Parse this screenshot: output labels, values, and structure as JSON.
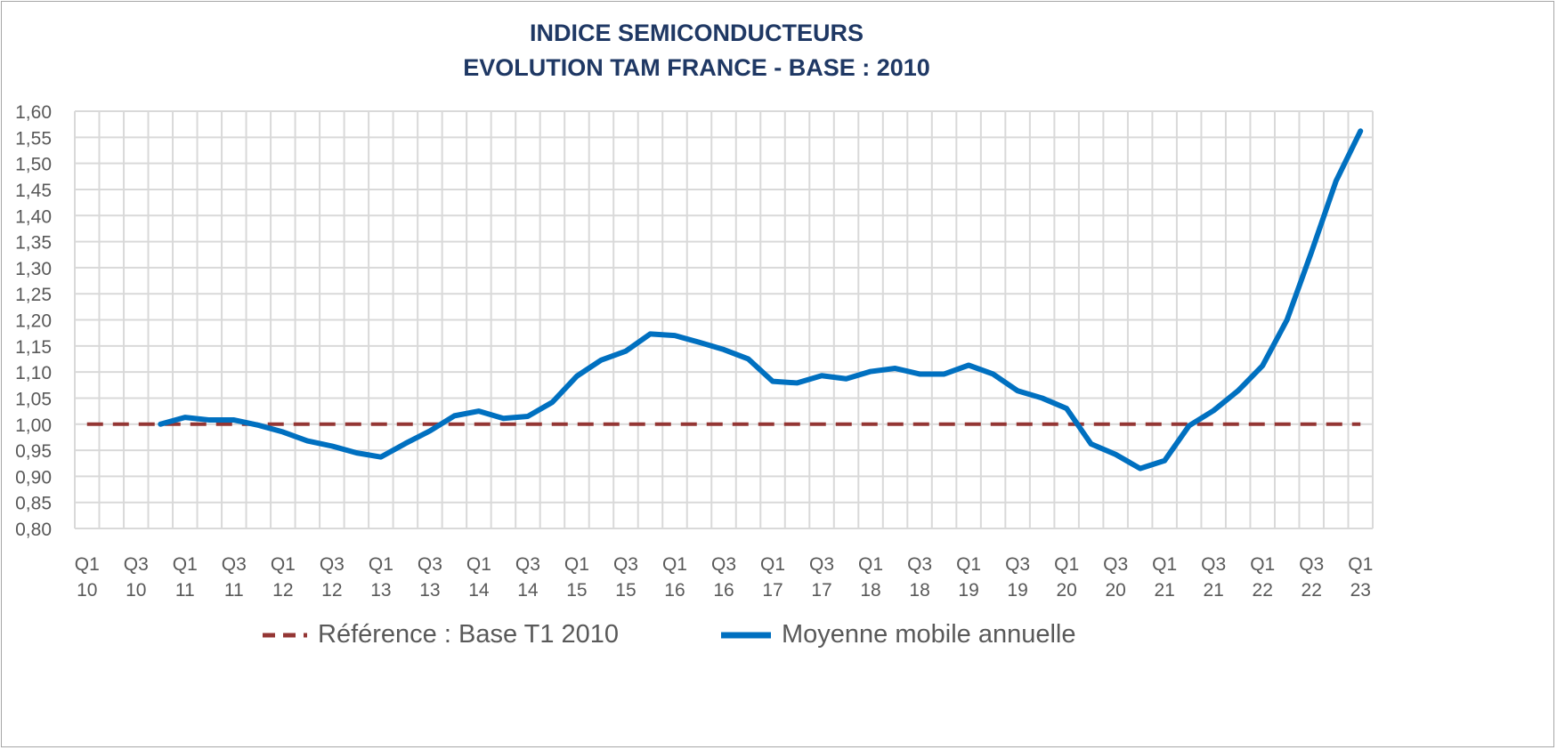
{
  "chart_data": {
    "type": "line",
    "title": "INDICE SEMICONDUCTEURS",
    "subtitle": "EVOLUTION TAM FRANCE - BASE : 2010",
    "xlabel": "",
    "ylabel": "",
    "ylim": [
      0.8,
      1.6
    ],
    "yticks": [
      "0,80",
      "0,85",
      "0,90",
      "0,95",
      "1,00",
      "1,05",
      "1,10",
      "1,15",
      "1,20",
      "1,25",
      "1,30",
      "1,35",
      "1,40",
      "1,45",
      "1,50",
      "1,55",
      "1,60"
    ],
    "grid": true,
    "legend_position": "bottom",
    "categories": [
      "Q1 10",
      "Q2 10",
      "Q3 10",
      "Q4 10",
      "Q1 11",
      "Q2 11",
      "Q3 11",
      "Q4 11",
      "Q1 12",
      "Q2 12",
      "Q3 12",
      "Q4 12",
      "Q1 13",
      "Q2 13",
      "Q3 13",
      "Q4 13",
      "Q1 14",
      "Q2 14",
      "Q3 14",
      "Q4 14",
      "Q1 15",
      "Q2 15",
      "Q3 15",
      "Q4 15",
      "Q1 16",
      "Q2 16",
      "Q3 16",
      "Q4 16",
      "Q1 17",
      "Q2 17",
      "Q3 17",
      "Q4 17",
      "Q1 18",
      "Q2 18",
      "Q3 18",
      "Q4 18",
      "Q1 19",
      "Q2 19",
      "Q3 19",
      "Q4 19",
      "Q1 20",
      "Q2 20",
      "Q3 20",
      "Q4 20",
      "Q1 21",
      "Q2 21",
      "Q3 21",
      "Q4 21",
      "Q1 22",
      "Q2 22",
      "Q3 22",
      "Q4 22",
      "Q1 23"
    ],
    "xtick_labels": [
      [
        "Q1",
        "10"
      ],
      [
        "Q3",
        "10"
      ],
      [
        "Q1",
        "11"
      ],
      [
        "Q3",
        "11"
      ],
      [
        "Q1",
        "12"
      ],
      [
        "Q3",
        "12"
      ],
      [
        "Q1",
        "13"
      ],
      [
        "Q3",
        "13"
      ],
      [
        "Q1",
        "14"
      ],
      [
        "Q3",
        "14"
      ],
      [
        "Q1",
        "15"
      ],
      [
        "Q3",
        "15"
      ],
      [
        "Q1",
        "16"
      ],
      [
        "Q3",
        "16"
      ],
      [
        "Q1",
        "17"
      ],
      [
        "Q3",
        "17"
      ],
      [
        "Q1",
        "18"
      ],
      [
        "Q3",
        "18"
      ],
      [
        "Q1",
        "19"
      ],
      [
        "Q3",
        "19"
      ],
      [
        "Q1",
        "20"
      ],
      [
        "Q3",
        "20"
      ],
      [
        "Q1",
        "21"
      ],
      [
        "Q3",
        "21"
      ],
      [
        "Q1",
        "22"
      ],
      [
        "Q3",
        "22"
      ],
      [
        "Q1",
        "23"
      ]
    ],
    "series": [
      {
        "name": "Référence : Base T1 2010",
        "color": "#943634",
        "style": "dashed",
        "values": [
          1,
          1,
          1,
          1,
          1,
          1,
          1,
          1,
          1,
          1,
          1,
          1,
          1,
          1,
          1,
          1,
          1,
          1,
          1,
          1,
          1,
          1,
          1,
          1,
          1,
          1,
          1,
          1,
          1,
          1,
          1,
          1,
          1,
          1,
          1,
          1,
          1,
          1,
          1,
          1,
          1,
          1,
          1,
          1,
          1,
          1,
          1,
          1,
          1,
          1,
          1,
          1,
          1
        ]
      },
      {
        "name": "Moyenne mobile annuelle",
        "color": "#0070c0",
        "style": "solid",
        "values": [
          null,
          null,
          null,
          1.0,
          1.013,
          1.008,
          1.008,
          0.998,
          0.985,
          0.968,
          0.958,
          0.945,
          0.937,
          0.963,
          0.987,
          1.016,
          1.025,
          1.011,
          1.015,
          1.042,
          1.092,
          1.123,
          1.14,
          1.173,
          1.17,
          1.157,
          1.143,
          1.125,
          1.082,
          1.079,
          1.093,
          1.087,
          1.101,
          1.107,
          1.096,
          1.096,
          1.113,
          1.096,
          1.064,
          1.05,
          1.03,
          0.962,
          0.942,
          0.915,
          0.93,
          0.997,
          1.026,
          1.064,
          1.112,
          1.2,
          1.33,
          1.466,
          1.562
        ]
      }
    ]
  }
}
